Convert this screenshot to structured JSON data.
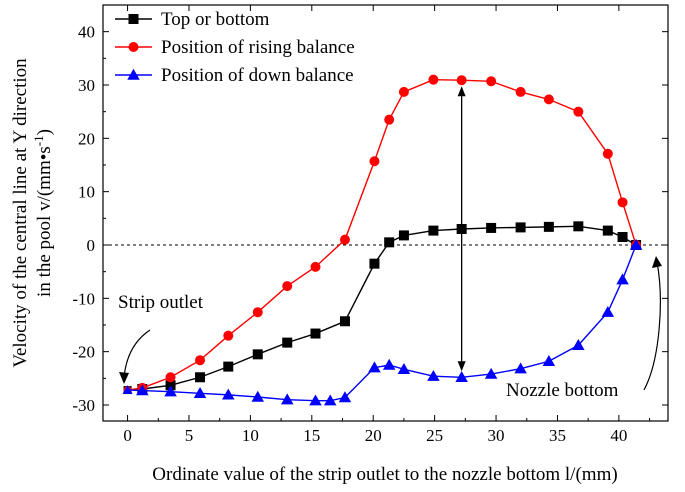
{
  "chart_data": {
    "type": "line",
    "xlabel": "Ordinate value of the strip outlet to the nozzle bottom l/(mm)",
    "ylabel_line1": "Velocity of the central line at Y direction",
    "ylabel_line2": "in the pool v/(mm•s",
    "ylabel_sup": "-1",
    "ylabel_end": ")",
    "xlim": [
      -2,
      44
    ],
    "ylim": [
      -33,
      45
    ],
    "xticks": [
      0,
      5,
      10,
      15,
      20,
      25,
      30,
      35,
      40
    ],
    "yticks": [
      -30,
      -20,
      -10,
      0,
      10,
      20,
      30,
      40
    ],
    "legend_position": "top-left",
    "series": [
      {
        "name": "Top  or  bottom",
        "color": "#000000",
        "marker": "square",
        "x": [
          0,
          1.2,
          3.5,
          5.9,
          8.2,
          10.6,
          13.0,
          15.3,
          17.7,
          20.1,
          21.3,
          22.5,
          24.9,
          27.2,
          29.6,
          32.0,
          34.3,
          36.7,
          39.1,
          40.3,
          41.4
        ],
        "y": [
          -27.2,
          -27.0,
          -26.3,
          -24.8,
          -22.8,
          -20.5,
          -18.3,
          -16.6,
          -14.3,
          -3.5,
          0.5,
          1.8,
          2.7,
          3.0,
          3.2,
          3.3,
          3.4,
          3.5,
          2.7,
          1.5,
          0.0
        ]
      },
      {
        "name": "Position of rising balance",
        "color": "#ff0000",
        "marker": "circle",
        "x": [
          0,
          1.2,
          3.5,
          5.9,
          8.2,
          10.6,
          13.0,
          15.3,
          17.7,
          20.1,
          21.3,
          22.5,
          24.9,
          27.2,
          29.6,
          32.0,
          34.3,
          36.7,
          39.1,
          40.3,
          41.4
        ],
        "y": [
          -27.2,
          -26.8,
          -24.8,
          -21.6,
          -17.0,
          -12.6,
          -7.7,
          -4.1,
          1.0,
          15.7,
          23.5,
          28.7,
          31.0,
          30.9,
          30.7,
          28.7,
          27.3,
          25.0,
          17.1,
          8.0,
          0.0
        ]
      },
      {
        "name": "Position of down balance",
        "color": "#0000ff",
        "marker": "triangle",
        "x": [
          0,
          1.2,
          3.5,
          5.9,
          8.2,
          10.6,
          13.0,
          15.3,
          16.5,
          17.7,
          20.1,
          21.3,
          22.5,
          24.9,
          27.2,
          29.6,
          32.0,
          34.3,
          36.7,
          39.1,
          40.3,
          41.4
        ],
        "y": [
          -27.2,
          -27.3,
          -27.5,
          -27.8,
          -28.1,
          -28.5,
          -29.0,
          -29.2,
          -29.2,
          -28.6,
          -23.0,
          -22.5,
          -23.3,
          -24.6,
          -24.8,
          -24.2,
          -23.2,
          -21.8,
          -18.8,
          -12.6,
          -6.5,
          0.0
        ]
      }
    ],
    "annotations": {
      "strip_outlet": "Strip outlet",
      "nozzle_bottom": "Nozzle bottom"
    }
  }
}
